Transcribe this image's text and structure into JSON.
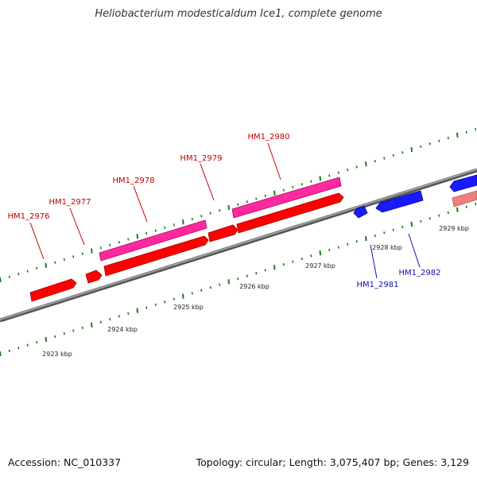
{
  "title": "Heliobacterium modesticaldum Ice1, complete genome",
  "footer": {
    "accession": "Accession: NC_010337",
    "summary": "Topology: circular; Length: 3,075,407 bp; Genes: 3,129"
  },
  "scale_labels": [
    "2923 kbp",
    "2924 kbp",
    "2925 kbp",
    "2926 kbp",
    "2927 kbp",
    "2928 kbp",
    "2929 kbp"
  ],
  "colors": {
    "backbone": "#808080",
    "forward_gene": "#ff0000",
    "forward_gene_label": "#c00000",
    "forward_cds": "#ff2aa0",
    "reverse_gene": "#1a1aff",
    "reverse_gene_label": "#1010b0",
    "reverse_cds": "#f08080",
    "tick": "#1a7a1a"
  },
  "gene_labels": [
    {
      "name": "HM1_2976",
      "strand": "forward"
    },
    {
      "name": "HM1_2977",
      "strand": "forward"
    },
    {
      "name": "HM1_2978",
      "strand": "forward"
    },
    {
      "name": "HM1_2979",
      "strand": "forward"
    },
    {
      "name": "HM1_2980",
      "strand": "forward"
    },
    {
      "name": "HM1_2981",
      "strand": "reverse"
    },
    {
      "name": "HM1_2982",
      "strand": "reverse"
    }
  ]
}
